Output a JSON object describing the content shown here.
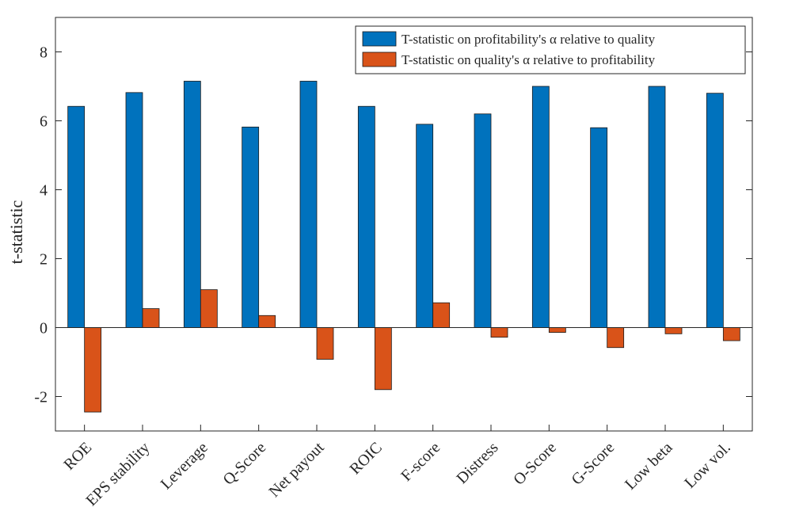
{
  "chart_data": {
    "type": "bar",
    "ylabel": "t-statistic",
    "ylim": [
      -3,
      9
    ],
    "yticks": [
      -2,
      0,
      2,
      4,
      6,
      8
    ],
    "ytick_labels": [
      "-2",
      "0",
      "2",
      "4",
      "6",
      "8"
    ],
    "categories": [
      "ROE",
      "EPS stability",
      "Leverage",
      "Q-Score",
      "Net payout",
      "ROIC",
      "F-score",
      "Distress",
      "O-Score",
      "G-Score",
      "Low beta",
      "Low vol."
    ],
    "series": [
      {
        "name": "T-statistic on profitability's α relative to quality",
        "color": "#0072BD",
        "values": [
          6.42,
          6.82,
          7.15,
          5.82,
          7.15,
          6.42,
          5.9,
          6.2,
          7.0,
          5.8,
          7.0,
          6.8
        ]
      },
      {
        "name": "T-statistic on quality's α relative to profitability",
        "color": "#D95319",
        "values": [
          -2.45,
          0.55,
          1.1,
          0.35,
          -0.92,
          -1.8,
          0.72,
          -0.28,
          -0.14,
          -0.58,
          -0.18,
          -0.38
        ]
      }
    ],
    "legend_position": "top-right",
    "grid": false,
    "zero_line": true
  }
}
